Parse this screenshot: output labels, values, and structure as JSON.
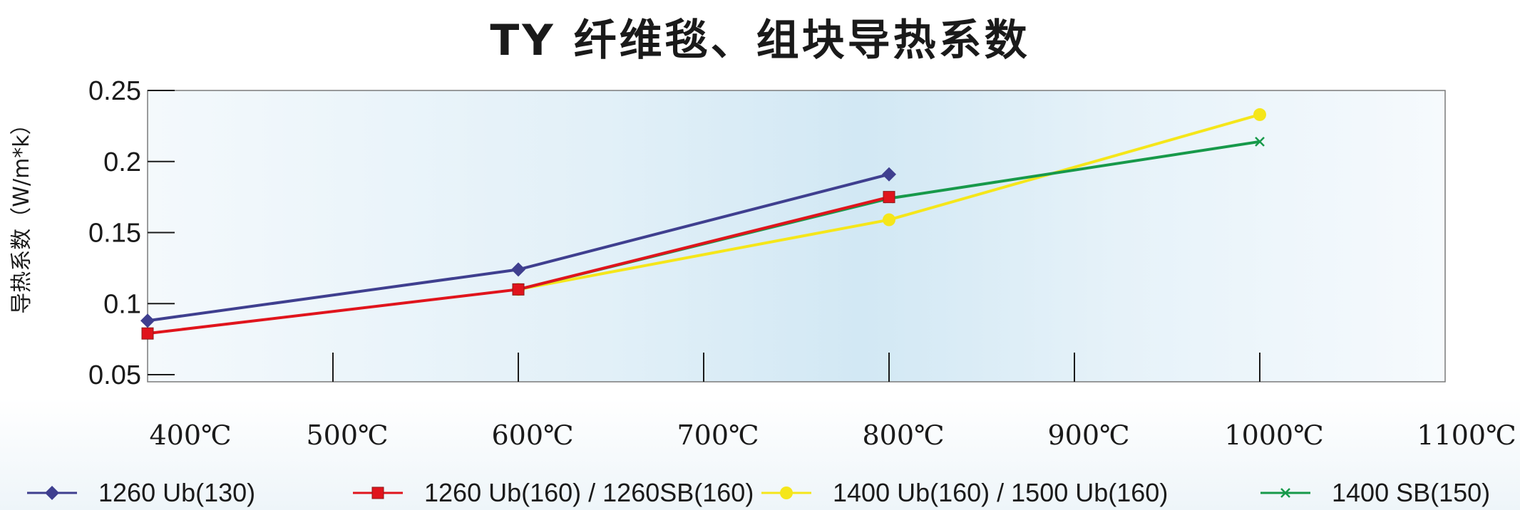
{
  "chart_data": {
    "type": "line",
    "title": "TY 纤维毯、组块导热系数",
    "ylabel": "导热系数（W/m*k）",
    "xlabel": "",
    "categories": [
      "400℃",
      "500℃",
      "600℃",
      "700℃",
      "800℃",
      "900℃",
      "1000℃",
      "1100℃"
    ],
    "x": [
      400,
      500,
      600,
      700,
      800,
      900,
      1000,
      1100
    ],
    "yticks": [
      "0.05",
      "0.1",
      "0.15",
      "0.2",
      "0.25"
    ],
    "ytick_values": [
      0.05,
      0.1,
      0.15,
      0.2,
      0.25
    ],
    "xlim": [
      400,
      1100
    ],
    "ylim": [
      0.045,
      0.25
    ],
    "grid": false,
    "legend_position": "bottom",
    "series": [
      {
        "name": "1260 Ub(130)",
        "color": "#3f3f8f",
        "marker": "diamond",
        "points": [
          [
            400,
            0.088
          ],
          [
            600,
            0.124
          ],
          [
            800,
            0.191
          ]
        ]
      },
      {
        "name": "1260 Ub(160) / 1260SB(160)",
        "color": "#e0141c",
        "marker": "square",
        "points": [
          [
            400,
            0.079
          ],
          [
            600,
            0.11
          ],
          [
            800,
            0.175
          ]
        ]
      },
      {
        "name": "1400 Ub(160) / 1500 Ub(160)",
        "color": "#f5e61a",
        "marker": "circle",
        "points": [
          [
            600,
            0.11
          ],
          [
            800,
            0.159
          ],
          [
            1000,
            0.233
          ]
        ]
      },
      {
        "name": "1400 SB(150)",
        "color": "#17994a",
        "marker": "x",
        "points": [
          [
            600,
            0.11
          ],
          [
            800,
            0.174
          ],
          [
            1000,
            0.214
          ]
        ]
      }
    ]
  }
}
